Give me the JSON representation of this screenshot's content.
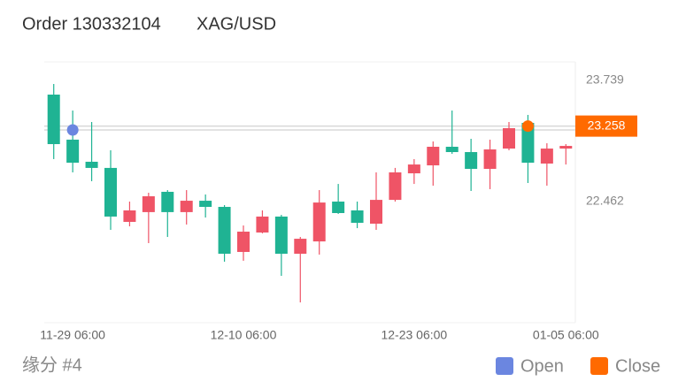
{
  "chart_data": {
    "type": "candlestick",
    "title": "Order 130332104",
    "subtitle": "XAG/USD",
    "footer_label": "缘分 #4",
    "categories": [
      null,
      "11-29 06:00",
      null,
      null,
      null,
      null,
      null,
      null,
      null,
      null,
      "12-10 06:00",
      null,
      null,
      null,
      null,
      null,
      null,
      null,
      null,
      "12-23 06:00",
      null,
      null,
      null,
      null,
      null,
      null,
      null,
      "01-05 06:00"
    ],
    "open": [
      23.068,
      22.872,
      22.817,
      22.304,
      22.369,
      22.518,
      22.351,
      22.471,
      22.406,
      21.912,
      22.145,
      22.304,
      21.912,
      22.07,
      22.452,
      22.341,
      22.238,
      22.48,
      22.77,
      22.853,
      23.04,
      22.984,
      22.807,
      23.012,
      23.236,
      22.872,
      23.021,
      23.049
    ],
    "high": [
      23.702,
      23.422,
      23.301,
      23.003,
      22.462,
      22.555,
      22.583,
      22.583,
      22.537,
      22.425,
      22.21,
      22.369,
      22.322,
      22.089,
      22.583,
      22.648,
      22.462,
      22.77,
      22.817,
      22.91,
      23.096,
      23.422,
      23.124,
      23.115,
      23.301,
      23.376,
      23.077,
      23.068
    ],
    "low": [
      22.91,
      22.77,
      22.677,
      22.164,
      22.201,
      22.024,
      22.089,
      22.22,
      22.294,
      21.828,
      21.838,
      22.127,
      21.679,
      21.399,
      21.903,
      22.332,
      22.182,
      22.164,
      22.462,
      22.648,
      22.63,
      22.965,
      22.574,
      22.593,
      23.003,
      22.658,
      22.63,
      22.853
    ],
    "close": [
      23.59,
      23.115,
      22.882,
      22.817,
      22.248,
      22.351,
      22.565,
      22.351,
      22.471,
      22.406,
      21.931,
      22.136,
      22.304,
      21.912,
      22.042,
      22.462,
      22.369,
      22.229,
      22.48,
      22.76,
      22.844,
      23.04,
      22.984,
      22.807,
      23.021,
      23.292,
      22.863,
      23.021
    ],
    "up_color": "#1fb393",
    "down_color": "#ef5466",
    "series": [
      {
        "name": "Open",
        "color": "#6b86e0",
        "values": [
          null,
          23.217,
          null,
          null,
          null,
          null,
          null,
          null,
          null,
          null,
          null,
          null,
          null,
          null,
          null,
          null,
          null,
          null,
          null,
          null,
          null,
          null,
          null,
          null,
          null,
          null,
          null,
          null
        ]
      },
      {
        "name": "Close",
        "color": "#ff6a00",
        "values": [
          null,
          null,
          null,
          null,
          null,
          null,
          null,
          null,
          null,
          null,
          null,
          null,
          null,
          null,
          null,
          null,
          null,
          null,
          null,
          null,
          null,
          null,
          null,
          null,
          null,
          23.258,
          null,
          null
        ]
      }
    ],
    "ylim": [
      21.185,
      23.935
    ],
    "yticks": [
      22.462,
      23.739
    ]
  }
}
